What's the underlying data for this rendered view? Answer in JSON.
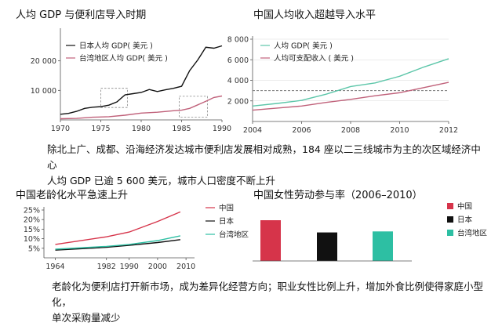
{
  "colors": {
    "china": "#d6344a",
    "japan": "#111111",
    "taiwan": "#2dbfa3",
    "pink": "#c0617a",
    "teal": "#5cc6a9",
    "grid": "#bdbdbd"
  },
  "captions": {
    "top": [
      "除北上广、成都、沿海经济发达城市便利店发展相对成熟，184 座以二三线城市为主的次区域经济中心",
      "人均 GDP 已逾 5 600 美元，城市人口密度不断上升"
    ],
    "bottom": [
      "老龄化为便利店打开新市场，成为差异化经营方向；职业女性比例上升，增加外食比例使得家庭小型化，",
      "单次采购量减少"
    ]
  },
  "chart_data": [
    {
      "id": "gdp",
      "type": "line",
      "title": "人均 GDP 与便利店导入时期",
      "xlim": [
        1970,
        1990
      ],
      "ylim": [
        0,
        30000
      ],
      "xticks": [
        "1970",
        "1975",
        "1980",
        "1985",
        "1990"
      ],
      "yticks": [
        "10 000",
        "20 000"
      ],
      "legend": "top-left",
      "series": [
        {
          "name": "日本人均 GDP( 美元 )",
          "color": "#111111",
          "points": [
            [
              1970,
              1900
            ],
            [
              1971,
              2200
            ],
            [
              1972,
              2900
            ],
            [
              1973,
              3900
            ],
            [
              1974,
              4300
            ],
            [
              1975,
              4500
            ],
            [
              1976,
              5000
            ],
            [
              1977,
              6100
            ],
            [
              1978,
              8500
            ],
            [
              1979,
              8900
            ],
            [
              1980,
              9300
            ],
            [
              1981,
              10300
            ],
            [
              1982,
              9600
            ],
            [
              1983,
              10200
            ],
            [
              1984,
              10700
            ],
            [
              1985,
              11400
            ],
            [
              1986,
              16700
            ],
            [
              1987,
              20300
            ],
            [
              1988,
              24600
            ],
            [
              1989,
              24300
            ],
            [
              1990,
              25100
            ]
          ]
        },
        {
          "name": "台湾地区人均 GDP( 美元 )",
          "color": "#c0617a",
          "points": [
            [
              1970,
              400
            ],
            [
              1972,
              500
            ],
            [
              1974,
              900
            ],
            [
              1976,
              1100
            ],
            [
              1978,
              1600
            ],
            [
              1980,
              2300
            ],
            [
              1982,
              2600
            ],
            [
              1984,
              3100
            ],
            [
              1985,
              3300
            ],
            [
              1986,
              3900
            ],
            [
              1987,
              5100
            ],
            [
              1988,
              6300
            ],
            [
              1989,
              7600
            ],
            [
              1990,
              8100
            ]
          ]
        }
      ],
      "annotations": [
        {
          "label": "dashed-box",
          "x": [
            1975,
            1978.3
          ],
          "y": [
            4200,
            10700
          ]
        },
        {
          "label": "dashed-box",
          "x": [
            1984.7,
            1988.2
          ],
          "y": [
            900,
            8000
          ]
        }
      ]
    },
    {
      "id": "income",
      "type": "line",
      "title": "中国人均收入超越导入水平",
      "xlim": [
        2004,
        2012
      ],
      "ylim": [
        0,
        8000
      ],
      "xticks": [
        "2004",
        "2006",
        "2008",
        "2010",
        "2012"
      ],
      "yticks": [
        "2 000",
        "4 000",
        "6 000",
        "8 000"
      ],
      "legend": "top-left",
      "reference_y": 3000,
      "series": [
        {
          "name": "人均 GDP( 美元 )",
          "color": "#5cc6a9",
          "points": [
            [
              2004,
              1500
            ],
            [
              2005,
              1750
            ],
            [
              2006,
              2050
            ],
            [
              2007,
              2650
            ],
            [
              2008,
              3400
            ],
            [
              2009,
              3750
            ],
            [
              2010,
              4400
            ],
            [
              2011,
              5300
            ],
            [
              2012,
              6100
            ]
          ]
        },
        {
          "name": "人均可支配收入 ( 美元 )",
          "color": "#c0617a",
          "points": [
            [
              2004,
              1100
            ],
            [
              2005,
              1300
            ],
            [
              2006,
              1500
            ],
            [
              2007,
              1850
            ],
            [
              2008,
              2150
            ],
            [
              2009,
              2500
            ],
            [
              2010,
              2800
            ],
            [
              2011,
              3300
            ],
            [
              2012,
              3800
            ]
          ]
        }
      ]
    },
    {
      "id": "aging",
      "type": "line",
      "title": "中国老龄化水平急速上升",
      "xlim": [
        1960,
        2013
      ],
      "ylim": [
        0,
        25
      ],
      "xticks": [
        "1964",
        "1982",
        "1990",
        "2000",
        "2010"
      ],
      "xtickvals": [
        1964,
        1982,
        1990,
        2000,
        2010
      ],
      "yticks": [
        "5%",
        "10%",
        "15%",
        "20%",
        "25%"
      ],
      "legend": "right",
      "series": [
        {
          "name": "中国",
          "color": "#d6344a",
          "points": [
            [
              1964,
              7
            ],
            [
              1982,
              11
            ],
            [
              1990,
              13.5
            ],
            [
              2000,
              19
            ],
            [
              2008,
              24
            ]
          ]
        },
        {
          "name": "日本",
          "color": "#111111",
          "points": [
            [
              1964,
              4
            ],
            [
              1982,
              5.5
            ],
            [
              1990,
              6.5
            ],
            [
              2000,
              8
            ],
            [
              2008,
              9.5
            ]
          ]
        },
        {
          "name": "台湾地区",
          "color": "#2dbfa3",
          "points": [
            [
              1964,
              4.5
            ],
            [
              1982,
              6
            ],
            [
              1990,
              7
            ],
            [
              2000,
              9
            ],
            [
              2008,
              11.5
            ]
          ]
        }
      ]
    },
    {
      "id": "female",
      "type": "bar",
      "title": "中国女性劳动参与率（2006–2010）",
      "categories": [
        "中国",
        "日本",
        "台湾地区"
      ],
      "values": [
        20,
        14,
        14.5
      ],
      "ylim": [
        0,
        25
      ],
      "colors": [
        "#d6344a",
        "#111111",
        "#2dbfa3"
      ],
      "legend": "right"
    }
  ]
}
